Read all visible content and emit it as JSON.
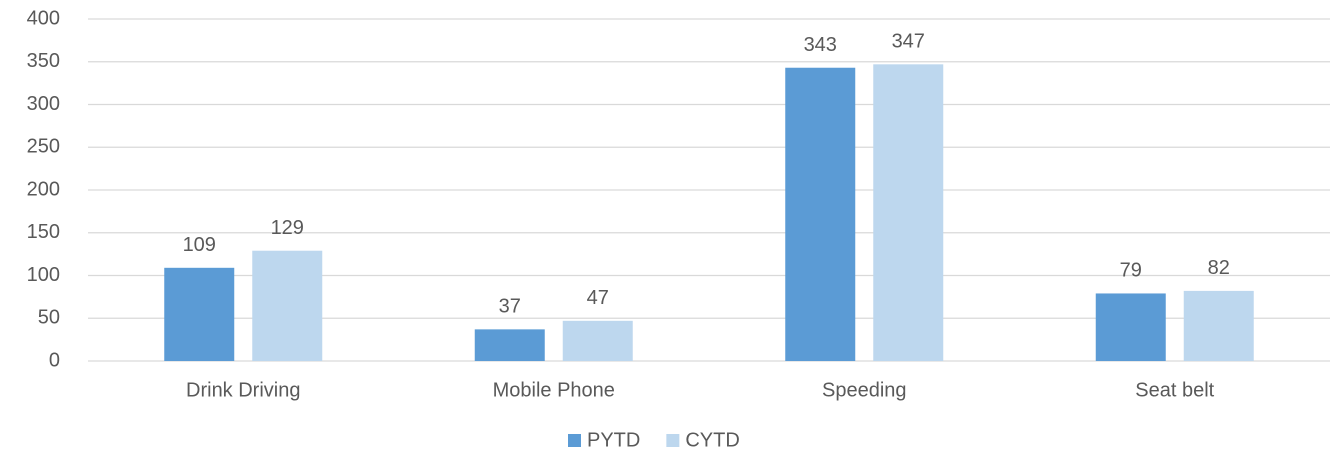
{
  "chart_data": {
    "type": "bar",
    "categories": [
      "Drink Driving",
      "Mobile Phone",
      "Speeding",
      "Seat belt"
    ],
    "series": [
      {
        "name": "PYTD",
        "color": "#5b9bd5",
        "values": [
          109,
          37,
          343,
          79
        ]
      },
      {
        "name": "CYTD",
        "color": "#bdd7ee",
        "values": [
          129,
          47,
          347,
          82
        ]
      }
    ],
    "ylim": [
      0,
      400
    ],
    "yticks": [
      0,
      50,
      100,
      150,
      200,
      250,
      300,
      350,
      400
    ],
    "grid": true,
    "legend": "bottom"
  }
}
